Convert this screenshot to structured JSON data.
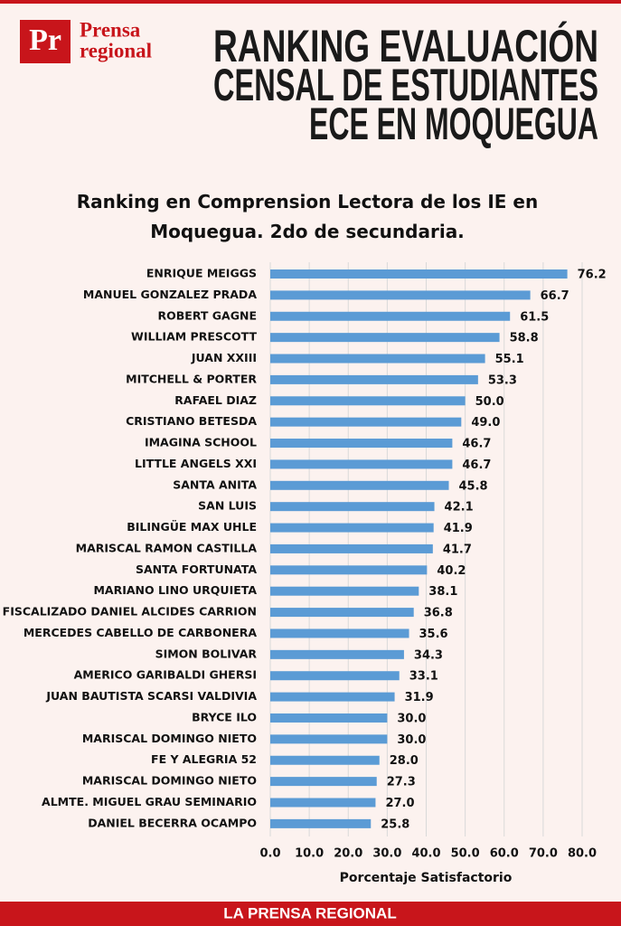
{
  "header": {
    "logo": "Pr",
    "brand": [
      "Prensa",
      "regional"
    ],
    "title_lines": [
      "RANKING EVALUACIÓN",
      "CENSAL DE ESTUDIANTES",
      "ECE EN MOQUEGUA"
    ]
  },
  "footer": "LA PRENSA REGIONAL",
  "chart_data": {
    "type": "hbar",
    "title": "Ranking en Comprension Lectora de los IE en Moquegua. 2do de secundaria.",
    "x_label": "Porcentaje Satisfactorio",
    "color": "#5b9bd5",
    "grid": true,
    "categories": [
      "ENRIQUE MEIGGS",
      "MANUEL GONZALEZ PRADA",
      "ROBERT GAGNE",
      "WILLIAM PRESCOTT",
      "JUAN XXIII",
      "MITCHELL & PORTER",
      "RAFAEL DIAZ",
      "CRISTIANO BETESDA",
      "IMAGINA SCHOOL",
      "LITTLE ANGELS XXI",
      "SANTA ANITA",
      "SAN LUIS",
      "BILINGÜE MAX UHLE",
      "MARISCAL RAMON CASTILLA",
      "SANTA FORTUNATA",
      "MARIANO LINO URQUIETA",
      "FISCALIZADO DANIEL ALCIDES CARRION",
      "MERCEDES CABELLO DE CARBONERA",
      "SIMON BOLIVAR",
      "AMERICO GARIBALDI GHERSI",
      "JUAN BAUTISTA SCARSI VALDIVIA",
      "BRYCE ILO",
      "MARISCAL DOMINGO NIETO",
      "FE Y ALEGRIA 52",
      "MARISCAL DOMINGO NIETO",
      "ALMTE. MIGUEL GRAU SEMINARIO",
      "DANIEL BECERRA OCAMPO"
    ],
    "values": [
      76.2,
      66.7,
      61.5,
      58.8,
      55.1,
      53.3,
      50,
      49,
      46.7,
      46.7,
      45.8,
      42.1,
      41.9,
      41.7,
      40.2,
      38.1,
      36.8,
      35.6,
      34.3,
      33.1,
      31.9,
      30,
      30,
      28,
      27.3,
      27,
      25.8
    ],
    "value_labels": [
      "76.2",
      "66.7",
      "61.5",
      "58.8",
      "55.1",
      "53.3",
      "50.0",
      "49.0",
      "46.7",
      "46.7",
      "45.8",
      "42.1",
      "41.9",
      "41.7",
      "40.2",
      "38.1",
      "36.8",
      "35.6",
      "34.3",
      "33.1",
      "31.9",
      "30.0",
      "30.0",
      "28.0",
      "27.3",
      "27.0",
      "25.8"
    ],
    "xlim": [
      0,
      80
    ],
    "xticks": [
      {
        "value": 0,
        "label": "0.0"
      },
      {
        "value": 10,
        "label": "10.0"
      },
      {
        "value": 20,
        "label": "20.0"
      },
      {
        "value": 30,
        "label": "30.0"
      },
      {
        "value": 40,
        "label": "40.0"
      },
      {
        "value": 50,
        "label": "50.0"
      },
      {
        "value": 60,
        "label": "60.0"
      },
      {
        "value": 70,
        "label": "70.0"
      },
      {
        "value": 80,
        "label": "80.0"
      }
    ]
  }
}
